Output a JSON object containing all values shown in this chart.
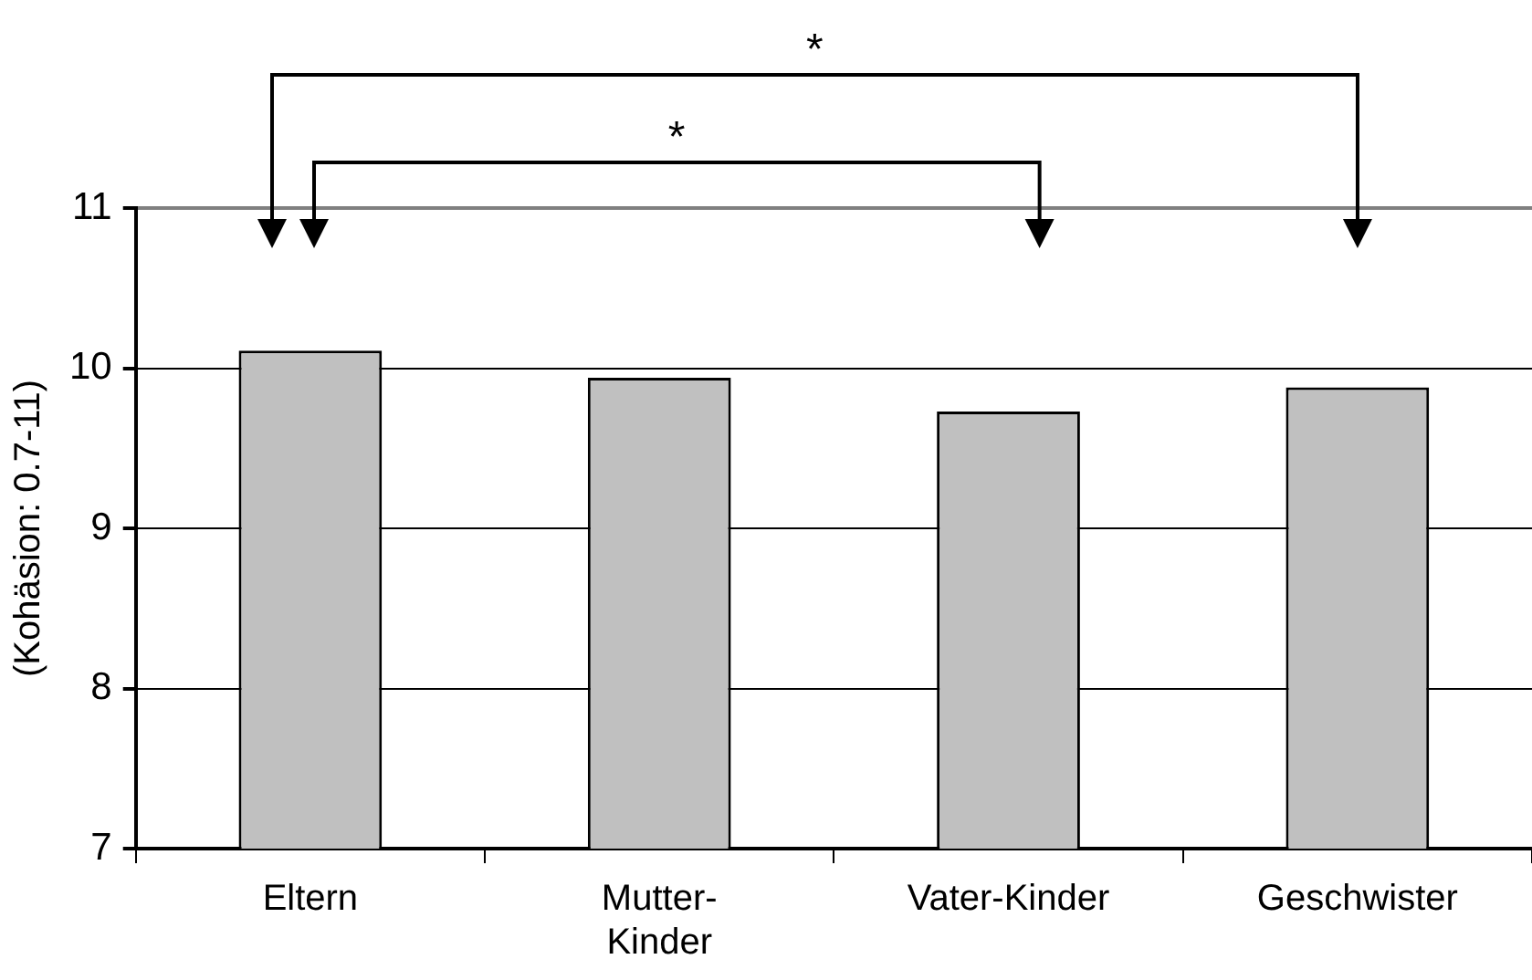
{
  "chart_data": {
    "type": "bar",
    "ylabel": "(Kohäsion: 0.7-11)",
    "categories": [
      "Eltern",
      "Mutter-\nKinder",
      "Vater-Kinder",
      "Geschwister"
    ],
    "values": [
      10.11,
      9.94,
      9.73,
      9.88
    ],
    "color": "#c0c0c0",
    "ylim": [
      7,
      11
    ],
    "yticks": [
      7,
      8,
      9,
      10,
      11
    ],
    "grid": "y",
    "annotations": [
      "*",
      "*"
    ]
  }
}
